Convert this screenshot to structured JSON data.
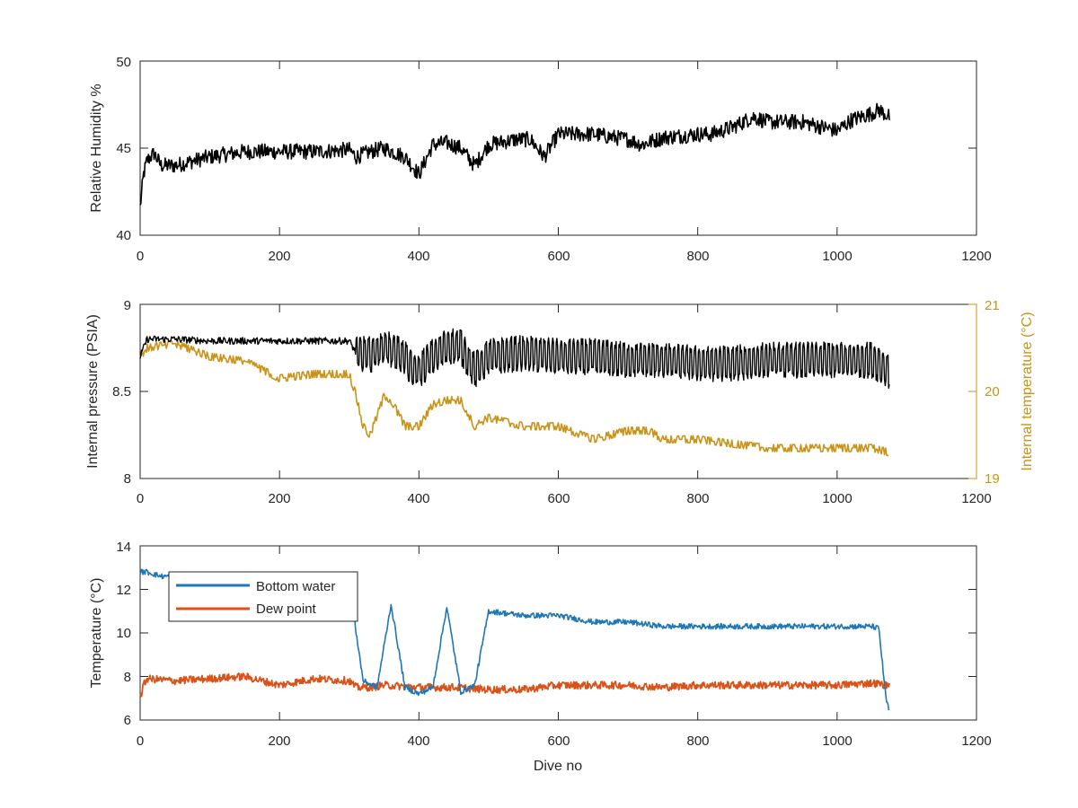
{
  "figure": {
    "xlabel": "Dive no",
    "panels": [
      {
        "id": "humidity",
        "ylabel": "Relative Humidity %",
        "xlim": [
          0,
          1200
        ],
        "ylim": [
          40,
          50
        ],
        "xticks": [
          "0",
          "200",
          "400",
          "600",
          "800",
          "1000",
          "1200"
        ],
        "yticks": [
          "40",
          "45",
          "50"
        ]
      },
      {
        "id": "pressure",
        "ylabel": "Internal pressure (PSIA)",
        "ylabel_right": "Internal temperature (°C)",
        "xlim": [
          0,
          1200
        ],
        "ylim": [
          8,
          9
        ],
        "ylim_right": [
          19,
          21
        ],
        "xticks": [
          "0",
          "200",
          "400",
          "600",
          "800",
          "1000",
          "1200"
        ],
        "yticks": [
          "8",
          "8.5",
          "9"
        ],
        "yticks_right": [
          "19",
          "20",
          "21"
        ]
      },
      {
        "id": "temperature",
        "ylabel": "Temperature (°C)",
        "xlim": [
          0,
          1200
        ],
        "ylim": [
          6,
          14
        ],
        "xticks": [
          "0",
          "200",
          "400",
          "600",
          "800",
          "1000",
          "1200"
        ],
        "yticks": [
          "6",
          "8",
          "10",
          "12",
          "14"
        ],
        "legend": [
          "Bottom water",
          "Dew point"
        ],
        "legend_position": "top-left"
      }
    ]
  },
  "colors": {
    "humidity": "#000000",
    "pressure": "#000000",
    "internal_temperature": "#c99318",
    "bottom_water": "#1f77b4",
    "dew_point": "#d95319",
    "axes": "#262626"
  },
  "chart_data": [
    {
      "type": "line",
      "panel": "humidity",
      "xlabel": "",
      "ylabel": "Relative Humidity %",
      "xlim": [
        0,
        1200
      ],
      "ylim": [
        40,
        50
      ],
      "series": [
        {
          "color": "#000000",
          "x": [
            0,
            5,
            10,
            20,
            30,
            50,
            80,
            100,
            150,
            200,
            250,
            300,
            310,
            330,
            350,
            380,
            400,
            420,
            440,
            460,
            480,
            500,
            540,
            560,
            580,
            600,
            650,
            700,
            720,
            750,
            800,
            820,
            850,
            880,
            900,
            950,
            1000,
            1020,
            1050,
            1060,
            1075
          ],
          "y": [
            41.6,
            43.5,
            44.3,
            44.7,
            44.0,
            44.0,
            44.3,
            44.5,
            44.8,
            44.8,
            44.8,
            44.9,
            44.5,
            44.8,
            45.0,
            44.5,
            43.5,
            45.2,
            45.3,
            45.0,
            44.0,
            45.2,
            45.5,
            45.5,
            44.5,
            45.8,
            45.8,
            45.5,
            45.2,
            45.6,
            45.8,
            45.8,
            46.2,
            46.8,
            46.5,
            46.5,
            46.0,
            46.6,
            47.0,
            47.2,
            46.8
          ]
        }
      ]
    },
    {
      "type": "line",
      "panel": "pressure",
      "xlabel": "",
      "ylabel": "Internal pressure (PSIA)",
      "ylabel_right": "Internal temperature (°C)",
      "xlim": [
        0,
        1200
      ],
      "ylim": [
        8,
        9
      ],
      "ylim_right": [
        19,
        21
      ],
      "series": [
        {
          "axis": "left",
          "color": "#000000",
          "x": [
            0,
            10,
            50,
            100,
            200,
            300,
            310,
            330,
            350,
            370,
            380,
            390,
            400,
            420,
            440,
            460,
            480,
            500,
            550,
            600,
            650,
            700,
            750,
            800,
            850,
            900,
            950,
            1000,
            1050,
            1075
          ],
          "y": [
            8.7,
            8.8,
            8.8,
            8.79,
            8.79,
            8.79,
            8.72,
            8.71,
            8.76,
            8.72,
            8.7,
            8.62,
            8.62,
            8.7,
            8.76,
            8.76,
            8.62,
            8.7,
            8.72,
            8.7,
            8.7,
            8.68,
            8.68,
            8.66,
            8.66,
            8.68,
            8.68,
            8.68,
            8.68,
            8.62
          ]
        },
        {
          "axis": "right",
          "color": "#c99318",
          "x": [
            0,
            10,
            50,
            100,
            150,
            200,
            250,
            300,
            310,
            320,
            330,
            350,
            360,
            380,
            400,
            420,
            440,
            460,
            480,
            500,
            550,
            600,
            650,
            700,
            730,
            750,
            800,
            850,
            900,
            950,
            1000,
            1050,
            1075
          ],
          "y": [
            20.4,
            20.5,
            20.55,
            20.4,
            20.35,
            20.15,
            20.2,
            20.2,
            19.95,
            19.6,
            19.5,
            19.95,
            19.9,
            19.6,
            19.6,
            19.85,
            19.9,
            19.9,
            19.6,
            19.7,
            19.6,
            19.6,
            19.45,
            19.55,
            19.55,
            19.45,
            19.45,
            19.4,
            19.35,
            19.35,
            19.35,
            19.35,
            19.3
          ]
        }
      ]
    },
    {
      "type": "line",
      "panel": "temperature",
      "xlabel": "Dive no",
      "ylabel": "Temperature (°C)",
      "xlim": [
        0,
        1200
      ],
      "ylim": [
        6,
        14
      ],
      "legend": [
        "Bottom water",
        "Dew point"
      ],
      "series": [
        {
          "name": "Bottom water",
          "color": "#1f77b4",
          "x": [
            0,
            10,
            20,
            30,
            40,
            300,
            310,
            320,
            340,
            360,
            380,
            400,
            420,
            440,
            460,
            480,
            500,
            550,
            600,
            650,
            700,
            750,
            800,
            850,
            900,
            950,
            1000,
            1050,
            1060,
            1070,
            1075
          ],
          "y": [
            12.8,
            12.8,
            12.7,
            12.6,
            12.6,
            12.6,
            10.0,
            7.8,
            7.5,
            11.3,
            7.5,
            7.2,
            7.5,
            11.2,
            7.3,
            7.6,
            11.0,
            10.8,
            10.8,
            10.5,
            10.5,
            10.3,
            10.3,
            10.3,
            10.3,
            10.3,
            10.3,
            10.3,
            10.2,
            7.0,
            6.4
          ]
        },
        {
          "name": "Dew point",
          "color": "#d95319",
          "x": [
            0,
            5,
            10,
            50,
            100,
            150,
            200,
            250,
            300,
            310,
            330,
            350,
            400,
            450,
            500,
            550,
            600,
            650,
            700,
            750,
            800,
            850,
            900,
            950,
            1000,
            1050,
            1075
          ],
          "y": [
            7.0,
            7.6,
            7.9,
            7.8,
            7.9,
            8.0,
            7.6,
            7.9,
            7.8,
            7.5,
            7.5,
            7.6,
            7.5,
            7.5,
            7.4,
            7.4,
            7.6,
            7.6,
            7.6,
            7.5,
            7.6,
            7.6,
            7.6,
            7.6,
            7.6,
            7.7,
            7.6
          ]
        }
      ]
    }
  ]
}
